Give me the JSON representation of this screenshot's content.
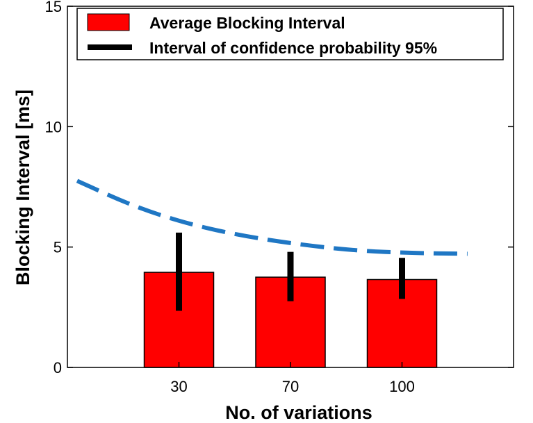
{
  "chart_data": {
    "type": "bar",
    "title": "",
    "xlabel": "No. of variations",
    "ylabel": "Blocking Interval [ms]",
    "categories": [
      "30",
      "70",
      "100"
    ],
    "ylim": [
      0,
      15
    ],
    "yticks": [
      "0",
      "5",
      "10",
      "15"
    ],
    "grid": false,
    "legend_position": "top-left",
    "series": [
      {
        "name": "Average Blocking Interval",
        "kind": "bar",
        "color": "#ff0000",
        "values": [
          3.95,
          3.75,
          3.65
        ]
      },
      {
        "name": "Interval of confidence probability 95%",
        "kind": "errorbar",
        "color": "#000000",
        "lower": [
          2.35,
          2.75,
          2.85
        ],
        "upper": [
          5.6,
          4.8,
          4.55
        ]
      },
      {
        "kind": "dashed-curve",
        "color": "#1f77c4",
        "x": [
          0,
          0.5,
          1,
          1.5,
          2,
          2.5,
          3,
          3.5
        ],
        "y": [
          7.75,
          6.7,
          5.95,
          5.45,
          5.1,
          4.85,
          4.75,
          4.72
        ]
      }
    ]
  }
}
